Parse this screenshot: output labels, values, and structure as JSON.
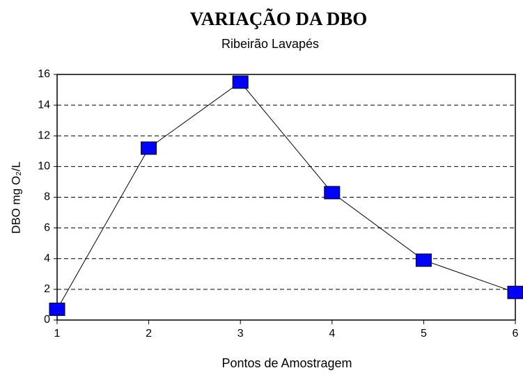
{
  "chart_data": {
    "type": "line",
    "title": "VARIAÇÃO DA DBO",
    "subtitle": "Ribeirão Lavapés",
    "x_label": "Pontos de Amostragem",
    "y_label": "DBO mg O₂/L",
    "x": [
      1,
      2,
      3,
      4,
      5,
      6
    ],
    "series": [
      {
        "name": "DBO",
        "color": "#0000ff",
        "values": [
          0.7,
          11.2,
          15.5,
          8.3,
          3.9,
          1.8
        ]
      }
    ],
    "xlim": [
      1,
      6
    ],
    "xticks": [
      1,
      2,
      3,
      4,
      5,
      6
    ],
    "ylim": [
      0,
      16
    ],
    "yticks": [
      0,
      2,
      4,
      6,
      8,
      10,
      12,
      14,
      16
    ],
    "grid": true
  }
}
